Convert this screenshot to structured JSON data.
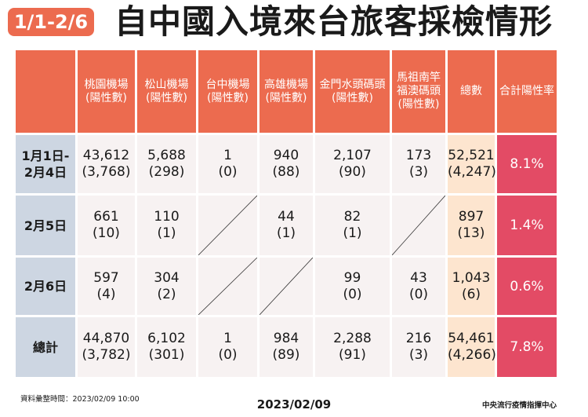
{
  "badge": "1/1-2/6",
  "title": "自中國入境來台旅客採檢情形",
  "columns": [
    "",
    "桃園機場\n(陽性數)",
    "松山機場\n(陽性數)",
    "台中機場\n(陽性數)",
    "高雄機場\n(陽性數)",
    "金門水頭碼頭\n(陽性數)",
    "馬祖南竿\n福澳碼頭\n(陽性數)",
    "總數",
    "合計陽性率"
  ],
  "rows": [
    {
      "label": "1月1日-\n2月4日",
      "cells": [
        {
          "v": "43,612",
          "p": "(3,768)"
        },
        {
          "v": "5,688",
          "p": "(298)"
        },
        {
          "v": "1",
          "p": "(0)"
        },
        {
          "v": "940",
          "p": "(88)"
        },
        {
          "v": "2,107",
          "p": "(90)"
        },
        {
          "v": "173",
          "p": "(3)"
        }
      ],
      "total": {
        "v": "52,521",
        "p": "(4,247)"
      },
      "rate": "8.1%"
    },
    {
      "label": "2月5日",
      "cells": [
        {
          "v": "661",
          "p": "(10)"
        },
        {
          "v": "110",
          "p": "(1)"
        },
        null,
        {
          "v": "44",
          "p": "(1)"
        },
        {
          "v": "82",
          "p": "(1)"
        },
        null
      ],
      "total": {
        "v": "897",
        "p": "(13)"
      },
      "rate": "1.4%"
    },
    {
      "label": "2月6日",
      "cells": [
        {
          "v": "597",
          "p": "(4)"
        },
        {
          "v": "304",
          "p": "(2)"
        },
        null,
        null,
        {
          "v": "99",
          "p": "(0)"
        },
        {
          "v": "43",
          "p": "(0)"
        }
      ],
      "total": {
        "v": "1,043",
        "p": "(6)"
      },
      "rate": "0.6%"
    },
    {
      "label": "總計",
      "cells": [
        {
          "v": "44,870",
          "p": "(3,782)"
        },
        {
          "v": "6,102",
          "p": "(301)"
        },
        {
          "v": "1",
          "p": "(0)"
        },
        {
          "v": "984",
          "p": "(89)"
        },
        {
          "v": "2,288",
          "p": "(91)"
        },
        {
          "v": "216",
          "p": "(3)"
        }
      ],
      "total": {
        "v": "54,461",
        "p": "(4,266)"
      },
      "rate": "7.8%"
    }
  ],
  "footer": {
    "left": "資料彙整時間：2023/02/09  10:00",
    "center": "2023/02/09",
    "right": "中央流行疫情指揮中心"
  },
  "colors": {
    "header": "#ec6b4f",
    "row_label": "#cdd6e2",
    "cell": "#f7f2f2",
    "total": "#fde5cf",
    "rate": "#e34b65"
  }
}
